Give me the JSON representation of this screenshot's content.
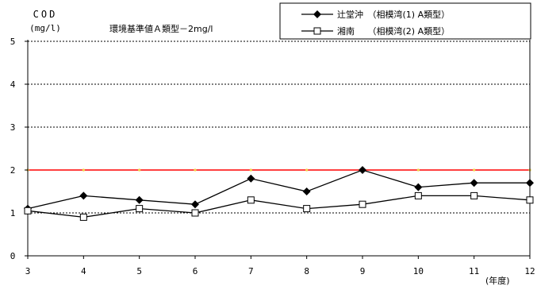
{
  "chart_data": {
    "type": "line",
    "title": "",
    "ylabel_line1": "COD",
    "ylabel_line2": "(mg/l)",
    "xlabel": "(年度)",
    "x": [
      3,
      4,
      5,
      6,
      7,
      8,
      9,
      10,
      11,
      12
    ],
    "xlim": [
      3,
      12
    ],
    "ylim": [
      0,
      5
    ],
    "yticks": [
      0,
      1,
      2,
      3,
      4,
      5
    ],
    "grid": "horizontal dashed",
    "legend_position": "top-right",
    "series": [
      {
        "name": "辻堂沖　（相模湾(1) A類型）",
        "marker": "filled-diamond",
        "values": [
          1.1,
          1.4,
          1.3,
          1.2,
          1.8,
          1.5,
          2.0,
          1.6,
          1.7,
          1.7
        ],
        "color": "#000000"
      },
      {
        "name": "湘南　　（相模湾(2) A類型）",
        "marker": "open-square",
        "values": [
          1.05,
          0.9,
          1.1,
          1.0,
          1.3,
          1.1,
          1.2,
          1.4,
          1.4,
          1.3
        ],
        "color": "#000000"
      }
    ],
    "reference_line": {
      "value": 2,
      "label": "環境基準値Ａ類型－2mg/l",
      "color": "#ff0000"
    }
  }
}
